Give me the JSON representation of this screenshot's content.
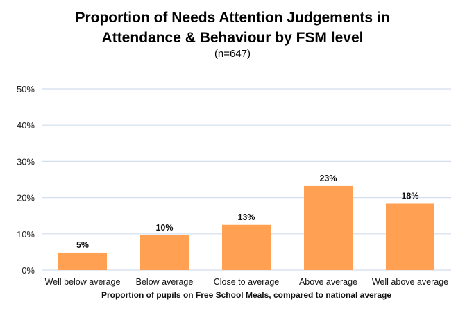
{
  "chart_data": {
    "type": "bar",
    "title_lines": [
      "Proportion of Needs Attention Judgements in",
      "Attendance & Behaviour by FSM level"
    ],
    "subtitle": "(n=647)",
    "categories": [
      "Well below average",
      "Below average",
      "Close to average",
      "Above average",
      "Well above average"
    ],
    "values": [
      4.8,
      9.6,
      12.5,
      23.2,
      18.3
    ],
    "data_labels": [
      "5%",
      "10%",
      "13%",
      "23%",
      "18%"
    ],
    "xlabel": "Proportion of pupils on Free School Meals, compared to national average",
    "ylabel": "",
    "ylim": [
      0,
      50
    ],
    "yticks": [
      0,
      10,
      20,
      30,
      40,
      50
    ],
    "ytick_labels": [
      "0%",
      "10%",
      "20%",
      "30%",
      "40%",
      "50%"
    ],
    "grid": true,
    "legend": "none",
    "bar_color": "#FFA052",
    "grid_color": "#D3DEEE"
  }
}
